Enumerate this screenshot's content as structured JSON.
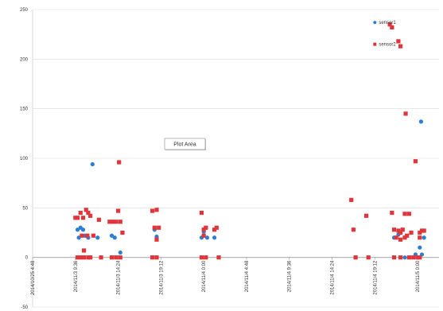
{
  "chart_data": {
    "type": "scatter",
    "ylim": [
      -50,
      250
    ],
    "y_ticks": [
      -50,
      0,
      50,
      100,
      150,
      200,
      250
    ],
    "y_tick_labels": [
      "-50",
      "0",
      "50",
      "100",
      "150",
      "200",
      "250"
    ],
    "grid": "horizontal",
    "legend_position": "top-right",
    "x_tick_labels": [
      "2014/10/25 4:48",
      "2014/11/3 9:36",
      "2014/11/3 14:24",
      "2014/11/3 19:12",
      "2014/11/4 0:00",
      "2014/11/4 4:48",
      "2014/11/4 9:36",
      "2014/11/4 14:24",
      "2014/11/4 19:12",
      "2014/11/5 0:00"
    ],
    "x_tick_pos": [
      0,
      1,
      2,
      3,
      4,
      5,
      6,
      7,
      8,
      9
    ],
    "xlim": [
      0,
      9.5
    ],
    "annotation": "Plot Area",
    "series": [
      {
        "name": "sensor1",
        "color": "#2a7fd4",
        "points": [
          [
            1.05,
            28
          ],
          [
            1.12,
            30
          ],
          [
            1.18,
            28
          ],
          [
            1.08,
            20
          ],
          [
            1.22,
            22
          ],
          [
            1.3,
            20
          ],
          [
            1.52,
            20
          ],
          [
            1.4,
            94
          ],
          [
            1.85,
            22
          ],
          [
            1.92,
            20
          ],
          [
            2.05,
            5
          ],
          [
            2.85,
            28
          ],
          [
            2.9,
            21
          ],
          [
            3.95,
            20
          ],
          [
            4.08,
            20
          ],
          [
            4.0,
            26
          ],
          [
            4.25,
            20
          ],
          [
            8.45,
            20
          ],
          [
            8.55,
            23
          ],
          [
            8.7,
            0
          ],
          [
            8.95,
            3
          ],
          [
            9.05,
            10
          ],
          [
            9.1,
            3
          ],
          [
            9.08,
            137
          ],
          [
            9.15,
            20
          ]
        ]
      },
      {
        "name": "sensor2",
        "color": "#e0353a",
        "points": [
          [
            1.0,
            40
          ],
          [
            1.05,
            40
          ],
          [
            1.12,
            45
          ],
          [
            1.18,
            40
          ],
          [
            1.25,
            48
          ],
          [
            1.3,
            45
          ],
          [
            1.35,
            42
          ],
          [
            1.05,
            0
          ],
          [
            1.12,
            0
          ],
          [
            1.2,
            0
          ],
          [
            1.3,
            0
          ],
          [
            1.35,
            0
          ],
          [
            1.15,
            22
          ],
          [
            1.28,
            22
          ],
          [
            1.42,
            22
          ],
          [
            1.2,
            7
          ],
          [
            1.55,
            38
          ],
          [
            1.6,
            0
          ],
          [
            1.8,
            36
          ],
          [
            1.88,
            36
          ],
          [
            1.95,
            36
          ],
          [
            2.05,
            36
          ],
          [
            1.85,
            0
          ],
          [
            1.95,
            0
          ],
          [
            2.05,
            0
          ],
          [
            2.0,
            47
          ],
          [
            2.02,
            96
          ],
          [
            2.1,
            25
          ],
          [
            2.8,
            47
          ],
          [
            2.9,
            48
          ],
          [
            2.85,
            30
          ],
          [
            2.95,
            30
          ],
          [
            2.9,
            18
          ],
          [
            2.8,
            0
          ],
          [
            2.9,
            0
          ],
          [
            3.95,
            45
          ],
          [
            4.0,
            28
          ],
          [
            4.05,
            30
          ],
          [
            4.0,
            22
          ],
          [
            3.95,
            0
          ],
          [
            4.05,
            0
          ],
          [
            4.25,
            28
          ],
          [
            4.3,
            30
          ],
          [
            4.35,
            0
          ],
          [
            7.45,
            58
          ],
          [
            7.5,
            28
          ],
          [
            7.55,
            0
          ],
          [
            7.8,
            42
          ],
          [
            7.85,
            0
          ],
          [
            8.35,
            235
          ],
          [
            8.4,
            232
          ],
          [
            8.55,
            218
          ],
          [
            8.6,
            213
          ],
          [
            8.72,
            145
          ],
          [
            8.95,
            97
          ],
          [
            8.4,
            45
          ],
          [
            8.45,
            28
          ],
          [
            8.55,
            27
          ],
          [
            8.6,
            25
          ],
          [
            8.65,
            28
          ],
          [
            8.5,
            20
          ],
          [
            8.6,
            18
          ],
          [
            8.7,
            44
          ],
          [
            8.8,
            44
          ],
          [
            8.7,
            20
          ],
          [
            8.75,
            22
          ],
          [
            8.85,
            25
          ],
          [
            8.45,
            0
          ],
          [
            8.6,
            0
          ],
          [
            8.8,
            0
          ],
          [
            8.9,
            0
          ],
          [
            9.0,
            0
          ],
          [
            9.05,
            0
          ],
          [
            9.05,
            25
          ],
          [
            9.1,
            27
          ],
          [
            9.15,
            27
          ],
          [
            9.05,
            20
          ]
        ]
      }
    ]
  }
}
